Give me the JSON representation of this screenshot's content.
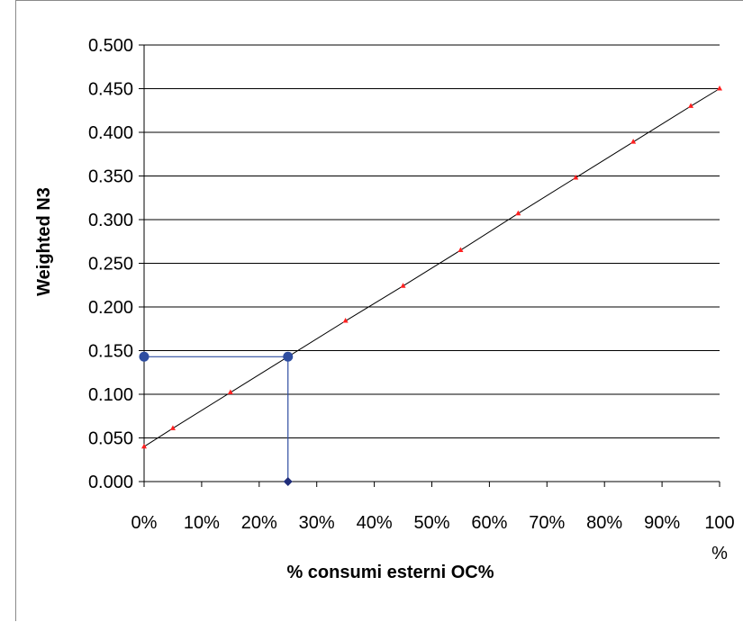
{
  "chart_data": {
    "type": "line",
    "title": "",
    "xlabel": "% consumi esterni OC%",
    "ylabel": "Weighted N3",
    "xlim": [
      0,
      100
    ],
    "ylim": [
      0,
      0.5
    ],
    "x_ticks": [
      0,
      10,
      20,
      30,
      40,
      50,
      60,
      70,
      80,
      90,
      100
    ],
    "x_tick_labels": [
      "0%",
      "10%",
      "20%",
      "30%",
      "40%",
      "50%",
      "60%",
      "70%",
      "80%",
      "90%",
      "100\n%"
    ],
    "y_ticks": [
      0,
      0.05,
      0.1,
      0.15,
      0.2,
      0.25,
      0.3,
      0.35,
      0.4,
      0.45,
      0.5
    ],
    "y_tick_labels": [
      "0.000",
      "0.050",
      "0.100",
      "0.150",
      "0.200",
      "0.250",
      "0.300",
      "0.350",
      "0.400",
      "0.450",
      "0.500"
    ],
    "grid": "horizontal",
    "legend": "none",
    "series": [
      {
        "x": [
          0,
          5,
          15,
          25,
          35,
          45,
          55,
          65,
          75,
          85,
          95,
          100
        ],
        "y": [
          0.04,
          0.061,
          0.102,
          0.143,
          0.184,
          0.224,
          0.265,
          0.307,
          0.348,
          0.389,
          0.43,
          0.45
        ],
        "color": "#000000",
        "marker_color": "#ff2020",
        "marker": "triangle"
      },
      {
        "x": [
          0,
          25
        ],
        "y": [
          0.143,
          0.143
        ],
        "color": "#2e4da0",
        "marker": "circle"
      },
      {
        "x": [
          25,
          25
        ],
        "y": [
          0.143,
          0
        ],
        "color": "#2e4da0",
        "marker": "diamond",
        "end_marker_color": "#1f2d7a"
      }
    ]
  }
}
